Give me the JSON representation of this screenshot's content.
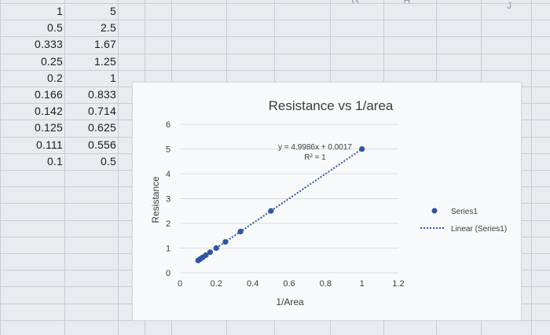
{
  "sheet": {
    "col_headers": [
      "G",
      "H",
      "J"
    ],
    "rows": [
      [
        "1",
        "5"
      ],
      [
        "0.5",
        "2.5"
      ],
      [
        "0.333",
        "1.67"
      ],
      [
        "0.25",
        "1.25"
      ],
      [
        "0.2",
        "1"
      ],
      [
        "0.166",
        "0.833"
      ],
      [
        "0.142",
        "0.714"
      ],
      [
        "0.125",
        "0.625"
      ],
      [
        "0.111",
        "0.556"
      ],
      [
        "0.1",
        "0.5"
      ]
    ]
  },
  "chart_data": {
    "type": "scatter",
    "title": "Resistance vs 1/area",
    "xlabel": "1/Area",
    "ylabel": "Resistance",
    "xlim": [
      0,
      1.2
    ],
    "ylim": [
      0,
      6
    ],
    "x_ticks": [
      "0",
      "0.2",
      "0.4",
      "0.6",
      "0.8",
      "1",
      "1.2"
    ],
    "y_ticks": [
      "0",
      "1",
      "2",
      "3",
      "4",
      "5",
      "6"
    ],
    "grid": true,
    "legend_position": "right",
    "series": [
      {
        "name": "Series1",
        "color": "#2f55a4",
        "x": [
          1,
          0.5,
          0.333,
          0.25,
          0.2,
          0.166,
          0.142,
          0.125,
          0.111,
          0.1
        ],
        "y": [
          5,
          2.5,
          1.67,
          1.25,
          1,
          0.833,
          0.714,
          0.625,
          0.556,
          0.5
        ]
      }
    ],
    "trendline": {
      "name": "Linear (Series1)",
      "slope": 4.9986,
      "intercept": 0.0017,
      "equation": "y = 4.9986x + 0.0017",
      "r_squared": "R² = 1"
    }
  }
}
